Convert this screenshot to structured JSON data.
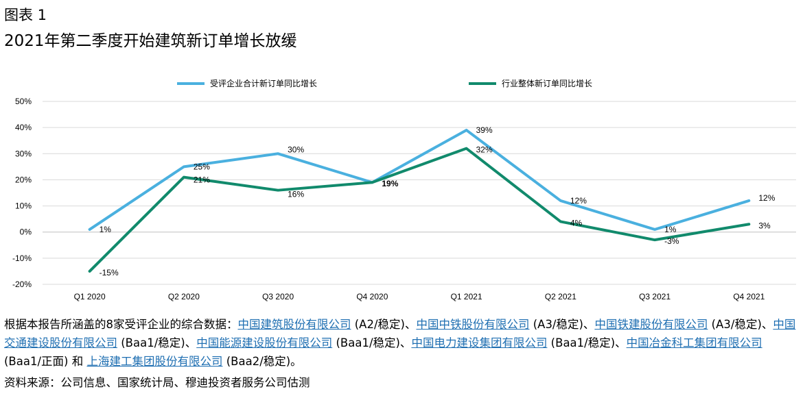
{
  "figure_label": "图表 1",
  "title": "2021年第二季度开始建筑新订单增长放缓",
  "colors": {
    "series1": "#4ab0df",
    "series2": "#118a6c",
    "grid": "#d9d9d9",
    "link": "#1f6fb2"
  },
  "chart_data": {
    "type": "line",
    "categories": [
      "Q1 2020",
      "Q2 2020",
      "Q3 2020",
      "Q4 2020",
      "Q1 2021",
      "Q2 2021",
      "Q3 2021",
      "Q4 2021"
    ],
    "ylim": [
      -20,
      50
    ],
    "yticks": [
      -20,
      -10,
      0,
      10,
      20,
      30,
      40,
      50
    ],
    "ytick_labels": [
      "-20%",
      "-10%",
      "0%",
      "10%",
      "20%",
      "30%",
      "40%",
      "50%"
    ],
    "grid": true,
    "legend": "top",
    "series": [
      {
        "name": "受评企业合计新订单同比增长",
        "values": [
          1,
          25,
          30,
          19,
          39,
          12,
          1,
          12
        ],
        "labels": [
          "1%",
          "25%",
          "30%",
          "",
          "39%",
          "12%",
          "1%",
          "12%"
        ]
      },
      {
        "name": "行业整体新订单同比增长",
        "values": [
          -15,
          21,
          16,
          19,
          32,
          4,
          -3,
          3
        ],
        "labels": [
          "-15%",
          "21%",
          "16%",
          "19%",
          "32%",
          "4%",
          "-3%",
          "3%"
        ]
      }
    ]
  },
  "note": {
    "prefix": "根据本报告所涵盖的8家受评企业的综合数据：",
    "items": [
      {
        "name": "中国建筑股份有限公司",
        "rating": " (A2/稳定)",
        "sep": "、"
      },
      {
        "name": "中国中铁股份有限公司",
        "rating": " (A3/稳定)",
        "sep": "、"
      },
      {
        "name": "中国铁建股份有限公司",
        "rating": " (A3/稳定)",
        "sep": "、"
      },
      {
        "name": "中国交通建设股份有限公司",
        "rating": " (Baa1/稳定)",
        "sep": "、"
      },
      {
        "name": "中国能源建设股份有限公司",
        "rating": " (Baa1/稳定)",
        "sep": "、"
      },
      {
        "name": "中国电力建设集团有限公司",
        "rating": " (Baa1/稳定)",
        "sep": "、"
      },
      {
        "name": "中国冶金科工集团有限公司",
        "rating": " (Baa1/正面)",
        "sep": " 和 "
      },
      {
        "name": "上海建工集团股份有限公司",
        "rating": " (Baa2/稳定)",
        "sep": "。"
      }
    ]
  },
  "source": "资料来源：公司信息、国家统计局、穆迪投资者服务公司估测"
}
